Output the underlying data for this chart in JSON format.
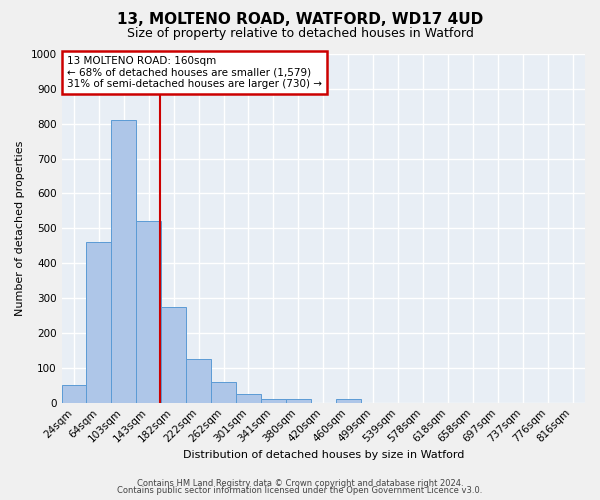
{
  "title_line1": "13, MOLTENO ROAD, WATFORD, WD17 4UD",
  "title_line2": "Size of property relative to detached houses in Watford",
  "xlabel": "Distribution of detached houses by size in Watford",
  "ylabel": "Number of detached properties",
  "footer_line1": "Contains HM Land Registry data © Crown copyright and database right 2024.",
  "footer_line2": "Contains public sector information licensed under the Open Government Licence v3.0.",
  "bin_labels": [
    "24sqm",
    "64sqm",
    "103sqm",
    "143sqm",
    "182sqm",
    "222sqm",
    "262sqm",
    "301sqm",
    "341sqm",
    "380sqm",
    "420sqm",
    "460sqm",
    "499sqm",
    "539sqm",
    "578sqm",
    "618sqm",
    "658sqm",
    "697sqm",
    "737sqm",
    "776sqm",
    "816sqm"
  ],
  "bar_values": [
    50,
    460,
    810,
    520,
    275,
    125,
    60,
    25,
    12,
    12,
    0,
    10,
    0,
    0,
    0,
    0,
    0,
    0,
    0,
    0,
    0
  ],
  "bar_color": "#aec6e8",
  "bar_edge_color": "#5b9bd5",
  "fig_background_color": "#f0f0f0",
  "background_color": "#e8eef5",
  "grid_color": "#ffffff",
  "vline_color": "#cc0000",
  "annotation_text_line1": "13 MOLTENO ROAD: 160sqm",
  "annotation_text_line2": "← 68% of detached houses are smaller (1,579)",
  "annotation_text_line3": "31% of semi-detached houses are larger (730) →",
  "annotation_box_color": "#cc0000",
  "ylim": [
    0,
    1000
  ],
  "yticks": [
    0,
    100,
    200,
    300,
    400,
    500,
    600,
    700,
    800,
    900,
    1000
  ],
  "title_fontsize": 11,
  "subtitle_fontsize": 9,
  "xlabel_fontsize": 8,
  "ylabel_fontsize": 8,
  "tick_fontsize": 7.5,
  "footer_fontsize": 6
}
